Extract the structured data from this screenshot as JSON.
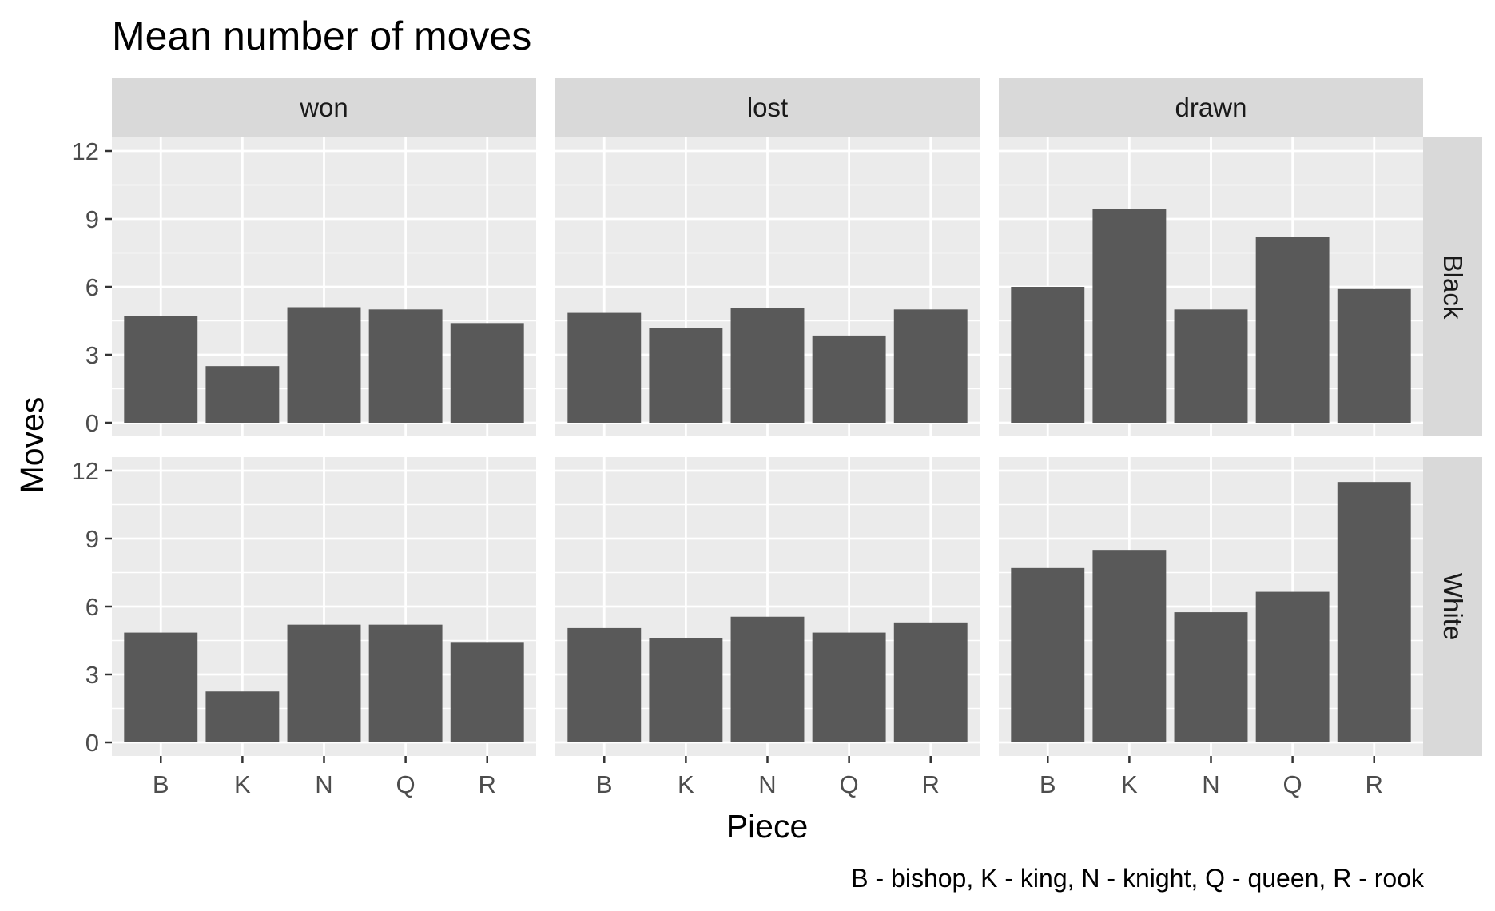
{
  "chart_data": {
    "type": "bar",
    "title": "Mean number of moves",
    "xlabel": "Piece",
    "ylabel": "Moves",
    "caption": "B - bishop, K - king, N - knight, Q - queen, R - rook",
    "categories": [
      "B",
      "K",
      "N",
      "Q",
      "R"
    ],
    "column_facets": [
      "won",
      "lost",
      "drawn"
    ],
    "row_facets": [
      "Black",
      "White"
    ],
    "ylim": [
      0,
      12
    ],
    "yticks": [
      "0",
      "3",
      "6",
      "9",
      "12"
    ],
    "grid": true,
    "colors": {
      "bar": "#595959",
      "panel": "#ebebeb",
      "strip": "#d9d9d9",
      "grid": "#ffffff"
    },
    "panels": [
      {
        "row": "Black",
        "column": "won",
        "values": [
          4.7,
          2.5,
          5.1,
          5.0,
          4.4
        ]
      },
      {
        "row": "Black",
        "column": "lost",
        "values": [
          4.85,
          4.2,
          5.05,
          3.85,
          5.0
        ]
      },
      {
        "row": "Black",
        "column": "drawn",
        "values": [
          6.0,
          9.45,
          5.0,
          8.2,
          5.9
        ]
      },
      {
        "row": "White",
        "column": "won",
        "values": [
          4.85,
          2.25,
          5.2,
          5.2,
          4.4
        ]
      },
      {
        "row": "White",
        "column": "lost",
        "values": [
          5.05,
          4.6,
          5.55,
          4.85,
          5.3
        ]
      },
      {
        "row": "White",
        "column": "drawn",
        "values": [
          7.7,
          8.5,
          5.75,
          6.65,
          11.5
        ]
      }
    ]
  }
}
